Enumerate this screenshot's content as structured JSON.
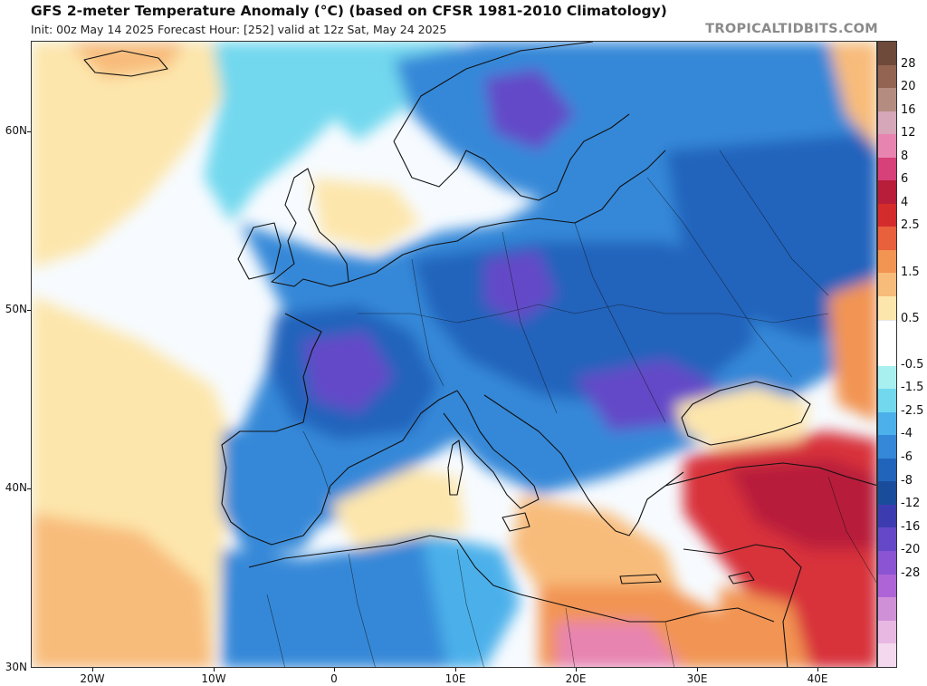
{
  "header": {
    "title": "GFS 2-meter Temperature Anomaly (°C) (based on CFSR 1981-2010 Climatology)",
    "subtitle": "Init: 00z May 14 2025   Forecast Hour: [252]   valid at 12z Sat, May 24 2025",
    "brand": "TROPICALTIDBITS.COM"
  },
  "axes": {
    "latitude_labels": [
      {
        "label": "60N",
        "value": 60
      },
      {
        "label": "50N",
        "value": 50
      },
      {
        "label": "40N",
        "value": 40
      },
      {
        "label": "30N",
        "value": 30
      }
    ],
    "longitude_labels": [
      {
        "label": "20W",
        "value": -20
      },
      {
        "label": "10W",
        "value": -10
      },
      {
        "label": "0",
        "value": 0
      },
      {
        "label": "10E",
        "value": 10
      },
      {
        "label": "20E",
        "value": 20
      },
      {
        "label": "30E",
        "value": 30
      },
      {
        "label": "40E",
        "value": 40
      }
    ]
  },
  "colorbar": {
    "labels": [
      "28",
      "20",
      "16",
      "12",
      "8",
      "6",
      "4",
      "2.5",
      "1.5",
      "0.5",
      "-0.5",
      "-1.5",
      "-2.5",
      "-4",
      "-6",
      "-8",
      "-12",
      "-16",
      "-20",
      "-28"
    ],
    "colors": [
      "#6e4a3a",
      "#946452",
      "#b58c80",
      "#d6a7b8",
      "#e884b0",
      "#d8407a",
      "#b81e3a",
      "#d42c2c",
      "#e8603c",
      "#f29452",
      "#f8bc7a",
      "#fde6ac",
      "#ffffff",
      "#ffffff",
      "#a8f0f0",
      "#72d8ee",
      "#4cb0ea",
      "#3588d8",
      "#2164bc",
      "#1a4c9c",
      "#3c3cb0",
      "#6448c8",
      "#8a54d2",
      "#ae64d6",
      "#d090d8",
      "#e8b8e2",
      "#f3d8ee"
    ]
  },
  "map": {
    "colors": {
      "sea_white": "#f7fbff",
      "warm_light": "#fde6ac",
      "warm_mid": "#f8bc7a",
      "warm_orange": "#f29452",
      "hot_red": "#d8303a",
      "hot_dark": "#b81e3a",
      "pink": "#e884b0",
      "cold_cyan": "#72d8ee",
      "cold_light": "#4cb0ea",
      "cold_mid": "#3588d8",
      "cold_deep": "#2164bc",
      "cold_purple": "#6448c8"
    }
  }
}
